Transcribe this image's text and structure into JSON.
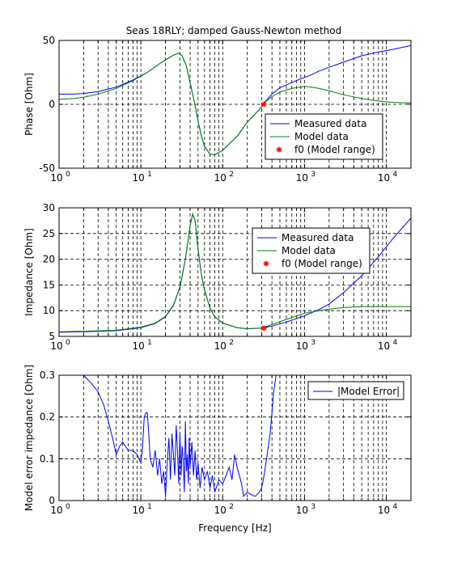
{
  "title": "Seas 18RLY; damped Gauss-Newton method",
  "colors": {
    "measured": "#0000ff",
    "model": "#008000",
    "f0": "#ff0000",
    "axes": "#000000",
    "background": "#ffffff"
  },
  "chart_data": [
    {
      "type": "line",
      "title": "Seas 18RLY; damped Gauss-Newton method",
      "xlabel": "",
      "ylabel": "Phase [Ohm]",
      "xscale": "log",
      "xlim": [
        1,
        20000
      ],
      "ylim": [
        -50,
        50
      ],
      "yticks": [
        -50,
        0,
        50
      ],
      "grid": "dashed",
      "legend_placement": "center-right",
      "series": [
        {
          "name": "Measured data",
          "color": "#0000ff",
          "x": [
            1,
            1.5,
            2,
            3,
            5,
            8,
            12,
            18,
            25,
            29,
            32,
            36,
            40,
            45,
            50,
            55,
            60,
            70,
            80,
            100,
            150,
            200,
            300,
            320,
            400,
            500,
            700,
            900,
            1000,
            1200,
            1500,
            2000,
            3000,
            5000,
            8000,
            12000,
            20000
          ],
          "y": [
            8,
            8,
            8.5,
            10,
            13.5,
            19,
            25,
            33,
            38.5,
            40,
            38,
            30,
            17,
            2,
            -13,
            -25,
            -33,
            -39,
            -39.5,
            -36,
            -25,
            -14,
            -2,
            1,
            8,
            13,
            17,
            20,
            21,
            23,
            26,
            29,
            33,
            38,
            41,
            43,
            46
          ]
        },
        {
          "name": "Model data",
          "color": "#008000",
          "x": [
            1,
            1.5,
            2,
            3,
            5,
            8,
            12,
            18,
            25,
            29,
            32,
            36,
            40,
            45,
            50,
            55,
            60,
            70,
            80,
            100,
            150,
            200,
            300,
            320,
            400,
            500,
            700,
            900,
            1000,
            1200,
            1500,
            2000,
            3000,
            5000,
            8000,
            12000,
            20000
          ],
          "y": [
            4,
            4.5,
            5.5,
            8,
            12.5,
            18.5,
            25,
            33,
            38.5,
            40,
            38,
            30,
            17,
            2,
            -13,
            -25,
            -33,
            -39,
            -39.5,
            -36,
            -25,
            -14,
            -2,
            1,
            6,
            9.5,
            12.5,
            13.5,
            14,
            13.5,
            12.5,
            10.5,
            7.5,
            4.5,
            2.5,
            1.5,
            1
          ]
        },
        {
          "name": "f0 (Model range)",
          "color": "#ff0000",
          "marker": "*",
          "x": [
            320
          ],
          "y": [
            0
          ]
        }
      ]
    },
    {
      "type": "line",
      "title": "",
      "xlabel": "",
      "ylabel": "Impedance [Ohm]",
      "xscale": "log",
      "xlim": [
        1,
        20000
      ],
      "ylim": [
        5,
        30
      ],
      "yticks": [
        5,
        10,
        15,
        20,
        25,
        30
      ],
      "grid": "dashed",
      "legend_placement": "top-right",
      "series": [
        {
          "name": "Measured data",
          "color": "#0000ff",
          "x": [
            1,
            2,
            5,
            10,
            15,
            20,
            25,
            30,
            35,
            40,
            43,
            46,
            50,
            55,
            60,
            70,
            80,
            100,
            150,
            200,
            300,
            400,
            600,
            1000,
            1500,
            2000,
            3000,
            5000,
            8000,
            12000,
            20000
          ],
          "y": [
            5.8,
            5.9,
            6.1,
            6.7,
            7.5,
            8.8,
            11,
            14.5,
            20,
            26.5,
            28.8,
            27.5,
            22,
            17,
            14,
            10.5,
            8.8,
            7.6,
            6.7,
            6.5,
            6.6,
            7,
            7.8,
            9,
            10.2,
            11.3,
            13.5,
            16.8,
            20.5,
            24,
            28
          ]
        },
        {
          "name": "Model data",
          "color": "#008000",
          "x": [
            1,
            2,
            5,
            10,
            15,
            20,
            25,
            30,
            35,
            40,
            43,
            46,
            50,
            55,
            60,
            70,
            80,
            100,
            150,
            200,
            300,
            400,
            600,
            1000,
            1500,
            2000,
            3000,
            5000,
            8000,
            12000,
            20000
          ],
          "y": [
            5.9,
            6,
            6.2,
            6.8,
            7.6,
            8.9,
            11.1,
            14.6,
            20,
            26.5,
            28.8,
            27.5,
            22,
            17,
            14,
            10.5,
            8.8,
            7.6,
            6.7,
            6.5,
            6.6,
            7.3,
            8.3,
            9.5,
            10,
            10.3,
            10.6,
            10.8,
            10.8,
            10.8,
            10.8
          ]
        },
        {
          "name": "f0 (Model range)",
          "color": "#ff0000",
          "marker": "*",
          "x": [
            320
          ],
          "y": [
            6.6
          ]
        }
      ]
    },
    {
      "type": "line",
      "title": "",
      "xlabel": "Frequency [Hz]",
      "ylabel": "Model error impedance [Ohm]",
      "xscale": "log",
      "xlim": [
        1,
        20000
      ],
      "ylim": [
        0,
        0.3
      ],
      "yticks": [
        0,
        0.1,
        0.2,
        0.3
      ],
      "grid": "dashed",
      "legend_placement": "top-right",
      "series": [
        {
          "name": "|Model Error|",
          "color": "#0000ff",
          "x": [
            2,
            2.5,
            3,
            3.5,
            4,
            4.5,
            5,
            5.5,
            6,
            7,
            8,
            9,
            10,
            10.5,
            11,
            11.5,
            12,
            12.5,
            13,
            14,
            15,
            16,
            17,
            18,
            19,
            20,
            21,
            22,
            23,
            24,
            25,
            26,
            27,
            28,
            29,
            30,
            31,
            32,
            33,
            34,
            35,
            36,
            37,
            38,
            39,
            40,
            42,
            44,
            46,
            48,
            50,
            53,
            56,
            60,
            65,
            70,
            75,
            80,
            90,
            100,
            110,
            120,
            130,
            140,
            150,
            160,
            170,
            180,
            200,
            220,
            250,
            280,
            300,
            320,
            350,
            380,
            400,
            420,
            450
          ],
          "y": [
            0.3,
            0.28,
            0.26,
            0.23,
            0.19,
            0.15,
            0.11,
            0.13,
            0.14,
            0.12,
            0.12,
            0.11,
            0.09,
            0.13,
            0.2,
            0.21,
            0.21,
            0.16,
            0.1,
            0.08,
            0.12,
            0.06,
            0.1,
            0.04,
            0.07,
            0.01,
            0.09,
            0.15,
            0.05,
            0.16,
            0.11,
            0.06,
            0.18,
            0.12,
            0.04,
            0.16,
            0.06,
            0.13,
            0.09,
            0.02,
            0.19,
            0.07,
            0.11,
            0.04,
            0.15,
            0.08,
            0.14,
            0.06,
            0.12,
            0.05,
            0.09,
            0.03,
            0.08,
            0.05,
            0.07,
            0.03,
            0.06,
            0.02,
            0.05,
            0.04,
            0.06,
            0.08,
            0.05,
            0.11,
            0.08,
            0.06,
            0.04,
            0.01,
            0.02,
            0.015,
            0.01,
            0.02,
            0.03,
            0.06,
            0.11,
            0.16,
            0.21,
            0.26,
            0.3
          ]
        }
      ]
    }
  ]
}
